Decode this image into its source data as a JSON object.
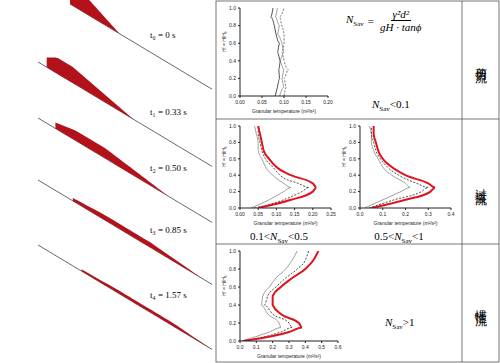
{
  "snapshots": [
    {
      "label": "t₀ = 0 s"
    },
    {
      "label": "t₁ = 0.33 s"
    },
    {
      "label": "t₂ = 0.50 s"
    },
    {
      "label": "t₃ = 0.85 s"
    },
    {
      "label": "t₄ = 1.57 s"
    }
  ],
  "formula": {
    "lhs": {
      "base": "N",
      "sub": "Sav"
    },
    "relation": "=",
    "numerator": "γ̇²d²",
    "denominator": "gH · tanϕ"
  },
  "regimes": [
    {
      "name": "剪切流",
      "conditions": [
        {
          "pre": "",
          "base": "N",
          "sub": "Sav",
          "rest": "<0.1"
        }
      ]
    },
    {
      "name": "过渡流",
      "conditions": [
        {
          "pre": "0.1<",
          "base": "N",
          "sub": "Sav",
          "rest": "<0.5"
        },
        {
          "pre": "0.5<",
          "base": "N",
          "sub": "Sav",
          "rest": "<1"
        }
      ]
    },
    {
      "name": "惯性流",
      "conditions": [
        {
          "pre": "",
          "base": "N",
          "sub": "Sav",
          "rest": ">1"
        }
      ]
    }
  ],
  "chart_data": [
    {
      "type": "line",
      "xlabel": "Granular temperature (m²/s²)",
      "ylabel": "H' = H/H₀",
      "xlim": [
        0,
        0.2
      ],
      "xticks": [
        {
          "value": 0,
          "label": "0.00"
        },
        {
          "value": 0.05,
          "label": "0.05"
        },
        {
          "value": 0.1,
          "label": "0.10"
        },
        {
          "value": 0.15,
          "label": "0.15"
        },
        {
          "value": 0.2,
          "label": "0.20"
        }
      ],
      "ylim": [
        0,
        1
      ],
      "yticks": [
        {
          "value": 0,
          "label": "0.0"
        },
        {
          "value": 0.2,
          "label": "0.2"
        },
        {
          "value": 0.4,
          "label": "0.4"
        },
        {
          "value": 0.6,
          "label": "0.6"
        },
        {
          "value": 0.8,
          "label": "0.8"
        },
        {
          "value": 1,
          "label": "1.0"
        }
      ],
      "series": [
        {
          "color": "#888888",
          "line_style": "solid",
          "x": [
            0.09,
            0.1,
            0.095,
            0.1,
            0.09,
            0.1,
            0.095,
            0.085,
            0.09,
            0.08,
            0.085
          ],
          "values": [
            0,
            0.1,
            0.2,
            0.3,
            0.4,
            0.5,
            0.6,
            0.7,
            0.8,
            0.9,
            1
          ]
        },
        {
          "color": "#222222",
          "line_style": "solid",
          "x": [
            0.08,
            0.085,
            0.09,
            0.088,
            0.092,
            0.085,
            0.09,
            0.082,
            0.078,
            0.07,
            0.075
          ],
          "values": [
            0,
            0.1,
            0.2,
            0.3,
            0.4,
            0.5,
            0.6,
            0.7,
            0.8,
            0.9,
            1
          ]
        },
        {
          "color": "#555555",
          "line_style": "dashed",
          "x": [
            0.1,
            0.105,
            0.1,
            0.11,
            0.1,
            0.095,
            0.1,
            0.1,
            0.095,
            0.09,
            0.1
          ],
          "values": [
            0,
            0.1,
            0.2,
            0.3,
            0.4,
            0.5,
            0.6,
            0.7,
            0.8,
            0.9,
            1
          ]
        }
      ]
    },
    {
      "type": "line",
      "xlabel": "Granular temperature (m²/s²)",
      "ylabel": "H' = H/H₀",
      "xlim": [
        0,
        0.25
      ],
      "xticks": [
        {
          "value": 0,
          "label": "0.00"
        },
        {
          "value": 0.05,
          "label": "0.05"
        },
        {
          "value": 0.1,
          "label": "0.10"
        },
        {
          "value": 0.15,
          "label": "0.15"
        },
        {
          "value": 0.2,
          "label": "0.20"
        },
        {
          "value": 0.25,
          "label": "0.25"
        }
      ],
      "ylim": [
        0,
        1
      ],
      "yticks": [
        {
          "value": 0,
          "label": "0.0"
        },
        {
          "value": 0.2,
          "label": "0.2"
        },
        {
          "value": 0.4,
          "label": "0.4"
        },
        {
          "value": 0.6,
          "label": "0.6"
        },
        {
          "value": 0.8,
          "label": "0.8"
        },
        {
          "value": 1,
          "label": "1.0"
        }
      ],
      "series": [
        {
          "color": "#888888",
          "line_style": "solid",
          "x": [
            0.03,
            0.08,
            0.12,
            0.14,
            0.12,
            0.09,
            0.07,
            0.06,
            0.05,
            0.05,
            0.045,
            0.04
          ],
          "values": [
            0,
            0.1,
            0.2,
            0.25,
            0.3,
            0.4,
            0.5,
            0.6,
            0.7,
            0.8,
            0.9,
            1
          ]
        },
        {
          "color": "#222222",
          "line_style": "dashed",
          "x": [
            0.04,
            0.12,
            0.17,
            0.19,
            0.16,
            0.11,
            0.09,
            0.07,
            0.06,
            0.055,
            0.05,
            0.05
          ],
          "values": [
            0,
            0.1,
            0.2,
            0.25,
            0.3,
            0.4,
            0.5,
            0.6,
            0.7,
            0.8,
            0.9,
            1
          ]
        },
        {
          "color": "#e0141e",
          "line_style": "solid",
          "x": [
            0.05,
            0.14,
            0.2,
            0.21,
            0.2,
            0.14,
            0.1,
            0.08,
            0.065,
            0.06,
            0.055,
            0.05
          ],
          "values": [
            0,
            0.1,
            0.2,
            0.25,
            0.3,
            0.4,
            0.5,
            0.6,
            0.7,
            0.8,
            0.9,
            1
          ]
        }
      ]
    },
    {
      "type": "line",
      "xlabel": "Granular temperature (m²/s²)",
      "ylabel": "H' = H/H₀",
      "xlim": [
        0,
        0.4
      ],
      "xticks": [
        {
          "value": 0,
          "label": "0.0"
        },
        {
          "value": 0.1,
          "label": "0.1"
        },
        {
          "value": 0.2,
          "label": "0.2"
        },
        {
          "value": 0.3,
          "label": "0.3"
        },
        {
          "value": 0.4,
          "label": "0.4"
        }
      ],
      "ylim": [
        0,
        1
      ],
      "yticks": [
        {
          "value": 0,
          "label": "0.0"
        },
        {
          "value": 0.2,
          "label": "0.2"
        },
        {
          "value": 0.4,
          "label": "0.4"
        },
        {
          "value": 0.6,
          "label": "0.6"
        },
        {
          "value": 0.8,
          "label": "0.8"
        },
        {
          "value": 1,
          "label": "1.0"
        }
      ],
      "series": [
        {
          "color": "#888888",
          "line_style": "solid",
          "x": [
            0.02,
            0.1,
            0.18,
            0.22,
            0.2,
            0.14,
            0.1,
            0.08,
            0.06,
            0.05,
            0.05,
            0.04
          ],
          "values": [
            0,
            0.1,
            0.2,
            0.25,
            0.3,
            0.4,
            0.5,
            0.6,
            0.7,
            0.8,
            0.9,
            1
          ]
        },
        {
          "color": "#222222",
          "line_style": "dashed",
          "x": [
            0.04,
            0.15,
            0.27,
            0.3,
            0.25,
            0.17,
            0.12,
            0.09,
            0.07,
            0.06,
            0.05,
            0.05
          ],
          "values": [
            0,
            0.1,
            0.2,
            0.25,
            0.3,
            0.4,
            0.5,
            0.6,
            0.7,
            0.8,
            0.9,
            1
          ]
        },
        {
          "color": "#e0141e",
          "line_style": "solid",
          "x": [
            0.05,
            0.2,
            0.31,
            0.33,
            0.3,
            0.2,
            0.14,
            0.1,
            0.08,
            0.07,
            0.06,
            0.06
          ],
          "values": [
            0,
            0.1,
            0.2,
            0.25,
            0.3,
            0.4,
            0.5,
            0.6,
            0.7,
            0.8,
            0.9,
            1
          ]
        }
      ]
    },
    {
      "type": "line",
      "xlabel": "Granular temperature (m²/s²)",
      "ylabel": "H' = H/H₀",
      "xlim": [
        0,
        0.6
      ],
      "xticks": [
        {
          "value": 0,
          "label": "0.0"
        },
        {
          "value": 0.1,
          "label": "0.1"
        },
        {
          "value": 0.2,
          "label": "0.2"
        },
        {
          "value": 0.3,
          "label": "0.3"
        },
        {
          "value": 0.4,
          "label": "0.4"
        },
        {
          "value": 0.5,
          "label": "0.5"
        },
        {
          "value": 0.6,
          "label": "0.6"
        }
      ],
      "ylim": [
        0,
        1
      ],
      "yticks": [
        {
          "value": 0,
          "label": "0.0"
        },
        {
          "value": 0.2,
          "label": "0.2"
        },
        {
          "value": 0.4,
          "label": "0.4"
        },
        {
          "value": 0.6,
          "label": "0.6"
        },
        {
          "value": 0.8,
          "label": "0.8"
        },
        {
          "value": 1,
          "label": "1.0"
        }
      ],
      "series": [
        {
          "color": "#888888",
          "line_style": "solid",
          "x": [
            0.01,
            0.18,
            0.25,
            0.24,
            0.17,
            0.13,
            0.14,
            0.18,
            0.22,
            0.28,
            0.32,
            0.35
          ],
          "values": [
            0,
            0.1,
            0.15,
            0.2,
            0.3,
            0.4,
            0.5,
            0.6,
            0.7,
            0.8,
            0.9,
            1
          ]
        },
        {
          "color": "#222222",
          "line_style": "dashed",
          "x": [
            0.02,
            0.25,
            0.32,
            0.3,
            0.2,
            0.15,
            0.17,
            0.22,
            0.28,
            0.35,
            0.4,
            0.42
          ],
          "values": [
            0,
            0.1,
            0.15,
            0.2,
            0.3,
            0.4,
            0.5,
            0.6,
            0.7,
            0.8,
            0.9,
            1
          ]
        },
        {
          "color": "#e0141e",
          "line_style": "solid",
          "x": [
            0.02,
            0.3,
            0.38,
            0.36,
            0.25,
            0.2,
            0.2,
            0.25,
            0.32,
            0.4,
            0.45,
            0.48
          ],
          "values": [
            0,
            0.1,
            0.15,
            0.2,
            0.3,
            0.4,
            0.5,
            0.6,
            0.7,
            0.8,
            0.9,
            1
          ]
        }
      ]
    }
  ]
}
